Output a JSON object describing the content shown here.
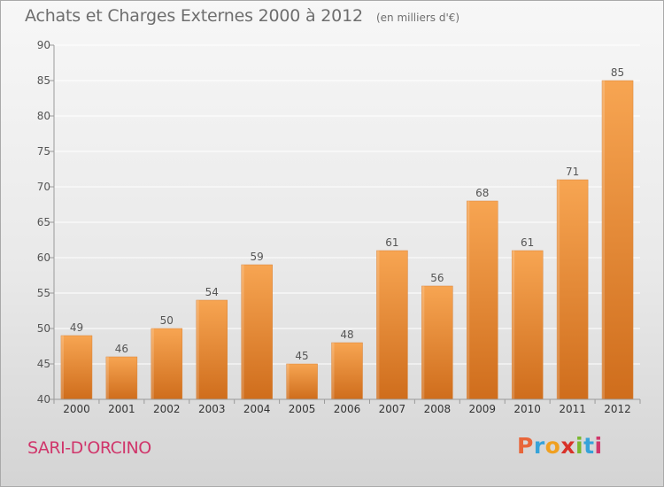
{
  "header": {
    "title": "Achats et Charges Externes 2000 à 2012",
    "unit": "(en milliers d'€)"
  },
  "footer": {
    "place": "SARI-D'ORCINO",
    "brand": "Proxiti"
  },
  "colors": {
    "bar_top": "#f7a552",
    "bar_bottom": "#cf6d1c",
    "axis": "#9a9a9a",
    "grid": "#ffffff",
    "text": "#555555",
    "place": "#d0366b",
    "brand_letters": [
      "#e8663a",
      "#36a3d9",
      "#f0a020",
      "#d8322a",
      "#7ab82f",
      "#36a3d9",
      "#d0366b"
    ]
  },
  "chart_data": {
    "type": "bar",
    "title": "Achats et Charges Externes 2000 à 2012",
    "subtitle": "(en milliers d'€)",
    "categories": [
      "2000",
      "2001",
      "2002",
      "2003",
      "2004",
      "2005",
      "2006",
      "2007",
      "2008",
      "2009",
      "2010",
      "2011",
      "2012"
    ],
    "values": [
      49,
      46,
      50,
      54,
      59,
      45,
      48,
      61,
      56,
      68,
      61,
      71,
      85
    ],
    "ylim": [
      40,
      90
    ],
    "yticks": [
      40,
      45,
      50,
      55,
      60,
      65,
      70,
      75,
      80,
      85,
      90
    ],
    "grid": true,
    "data_labels": true
  }
}
